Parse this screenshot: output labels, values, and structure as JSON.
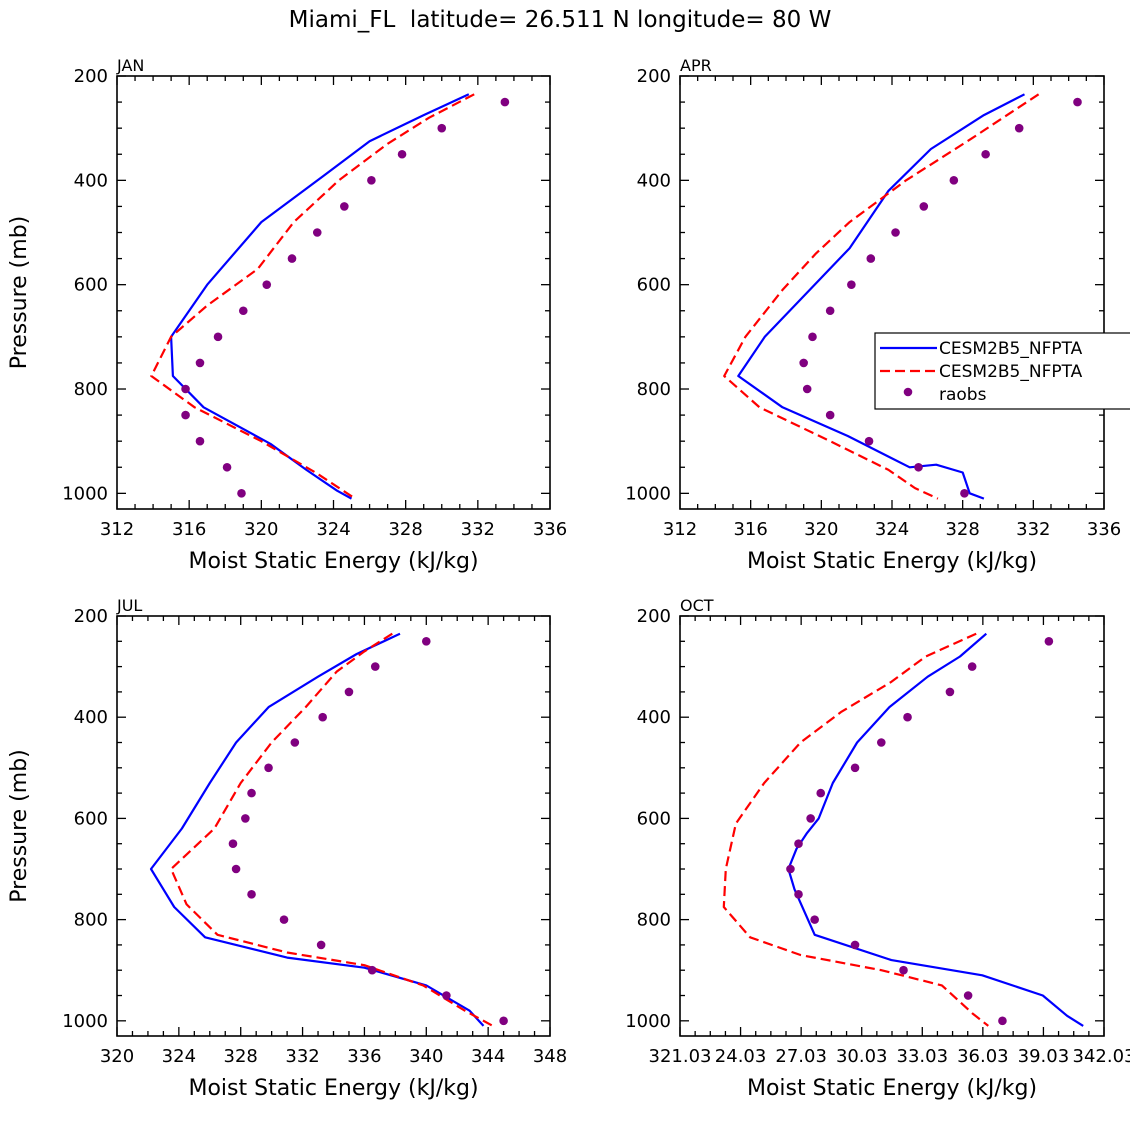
{
  "figure_title": "Miami_FL  latitude= 26.511 N longitude= 80 W",
  "legend": {
    "entries": [
      "CESM2B5_NFPTA",
      "CESM2B5_NFPTA",
      "raobs"
    ],
    "colors": [
      "#0000ff",
      "#ff0000",
      "#800080"
    ]
  },
  "chart_data": [
    {
      "type": "line",
      "title": "JAN",
      "xlabel": "Moist Static Energy (kJ/kg)",
      "ylabel": "Pressure (mb)",
      "xlim": [
        312,
        336
      ],
      "ylim": [
        200,
        1030
      ],
      "xticks": [
        312,
        316,
        320,
        324,
        328,
        332,
        336
      ],
      "xtick_labels": [
        "312",
        "316",
        "320",
        "324",
        "328",
        "332",
        "336"
      ],
      "yticks": [
        200,
        400,
        600,
        800,
        1000
      ],
      "ytick_labels": [
        "200",
        "400",
        "600",
        "800",
        "1000"
      ],
      "series": [
        {
          "name": "CESM2B5_NFPTA",
          "style": "solid",
          "color": "#0000ff",
          "x": [
            331.5,
            329.0,
            326.0,
            323.5,
            320.0,
            317.0,
            315.0,
            315.1,
            316.8,
            320.5,
            322.5,
            324.2,
            325.0
          ],
          "y": [
            235,
            275,
            325,
            390,
            480,
            600,
            700,
            775,
            835,
            905,
            955,
            995,
            1010
          ]
        },
        {
          "name": "CESM2B5_NFPTA",
          "style": "dashed",
          "color": "#ff0000",
          "x": [
            331.8,
            329.3,
            327.0,
            324.3,
            321.8,
            319.8,
            317.0,
            315.0,
            313.9,
            316.3,
            320.0,
            323.0,
            325.2
          ],
          "y": [
            235,
            280,
            330,
            400,
            480,
            570,
            640,
            700,
            775,
            835,
            900,
            960,
            1010
          ]
        }
      ],
      "points": {
        "name": "raobs",
        "color": "#800080",
        "x": [
          333.5,
          330.0,
          327.8,
          326.1,
          324.6,
          323.1,
          321.7,
          320.3,
          319.0,
          317.6,
          316.6,
          315.8,
          315.8,
          316.6,
          318.1,
          318.9
        ],
        "y": [
          250,
          300,
          350,
          400,
          450,
          500,
          550,
          600,
          650,
          700,
          750,
          800,
          850,
          900,
          950,
          1000
        ]
      }
    },
    {
      "type": "line",
      "title": "APR",
      "xlabel": "Moist Static Energy (kJ/kg)",
      "ylabel": "",
      "xlim": [
        312,
        336
      ],
      "ylim": [
        200,
        1030
      ],
      "xticks": [
        312,
        316,
        320,
        324,
        328,
        332,
        336
      ],
      "xtick_labels": [
        "312",
        "316",
        "320",
        "324",
        "328",
        "332",
        "336"
      ],
      "yticks": [
        200,
        400,
        600,
        800,
        1000
      ],
      "ytick_labels": [
        "200",
        "400",
        "600",
        "800",
        "1000"
      ],
      "legend_location": "right",
      "series": [
        {
          "name": "CESM2B5_NFPTA",
          "style": "solid",
          "color": "#0000ff",
          "x": [
            331.5,
            329.2,
            326.2,
            323.8,
            321.6,
            319.2,
            316.8,
            315.3,
            317.8,
            321.5,
            325.0,
            326.5,
            328.0,
            328.4,
            329.2
          ],
          "y": [
            235,
            275,
            340,
            420,
            530,
            615,
            700,
            775,
            835,
            890,
            950,
            945,
            960,
            1000,
            1010
          ]
        },
        {
          "name": "CESM2B5_NFPTA",
          "style": "dashed",
          "color": "#ff0000",
          "x": [
            332.3,
            328.5,
            324.8,
            321.6,
            319.7,
            317.8,
            315.7,
            314.5,
            316.5,
            320.5,
            323.8,
            325.3,
            326.6
          ],
          "y": [
            235,
            320,
            400,
            480,
            540,
            610,
            700,
            775,
            835,
            900,
            955,
            990,
            1010
          ]
        }
      ],
      "points": {
        "name": "raobs",
        "color": "#800080",
        "x": [
          334.5,
          331.2,
          329.3,
          327.5,
          325.8,
          324.2,
          322.8,
          321.7,
          320.5,
          319.5,
          319.0,
          319.2,
          320.5,
          322.7,
          325.5,
          328.1
        ],
        "y": [
          250,
          300,
          350,
          400,
          450,
          500,
          550,
          600,
          650,
          700,
          750,
          800,
          850,
          900,
          950,
          1000
        ]
      }
    },
    {
      "type": "line",
      "title": "JUL",
      "xlabel": "Moist Static Energy (kJ/kg)",
      "ylabel": "Pressure (mb)",
      "xlim": [
        320,
        348
      ],
      "ylim": [
        200,
        1030
      ],
      "xticks": [
        320,
        324,
        328,
        332,
        336,
        340,
        344,
        348
      ],
      "xtick_labels": [
        "320",
        "324",
        "328",
        "332",
        "336",
        "340",
        "344",
        "348"
      ],
      "yticks": [
        200,
        400,
        600,
        800,
        1000
      ],
      "ytick_labels": [
        "200",
        "400",
        "600",
        "800",
        "1000"
      ],
      "series": [
        {
          "name": "CESM2B5_NFPTA",
          "style": "solid",
          "color": "#0000ff",
          "x": [
            338.3,
            335.5,
            333.0,
            329.8,
            327.7,
            326.0,
            324.2,
            322.2,
            323.7,
            325.7,
            331.0,
            336.0,
            340.0,
            342.8,
            343.7
          ],
          "y": [
            235,
            275,
            320,
            380,
            450,
            530,
            620,
            700,
            775,
            835,
            875,
            895,
            930,
            980,
            1010
          ]
        },
        {
          "name": "CESM2B5_NFPTA",
          "style": "dashed",
          "color": "#ff0000",
          "x": [
            337.8,
            336.0,
            334.2,
            332.2,
            330.0,
            328.0,
            326.3,
            323.5,
            324.5,
            326.5,
            331.0,
            336.0,
            339.8,
            342.5,
            344.3
          ],
          "y": [
            235,
            270,
            310,
            380,
            450,
            530,
            620,
            700,
            770,
            830,
            865,
            890,
            930,
            980,
            1010
          ]
        }
      ],
      "points": {
        "name": "raobs",
        "color": "#800080",
        "x": [
          340.0,
          336.7,
          335.0,
          333.3,
          331.5,
          329.8,
          328.7,
          328.3,
          327.5,
          327.7,
          328.7,
          330.8,
          333.2,
          336.5,
          341.3,
          345.0
        ],
        "y": [
          250,
          300,
          350,
          400,
          450,
          500,
          550,
          600,
          650,
          700,
          750,
          800,
          850,
          900,
          950,
          1000
        ]
      }
    },
    {
      "type": "line",
      "title": "OCT",
      "xlabel": "Moist Static Energy (kJ/kg)",
      "ylabel": "",
      "xlim": [
        321.03,
        342.03
      ],
      "ylim": [
        200,
        1030
      ],
      "xticks": [
        321.03,
        324.03,
        327.03,
        330.03,
        333.03,
        336.03,
        339.03,
        342.03
      ],
      "xtick_labels": [
        "321.03",
        "24.03",
        "27.03",
        "30.03",
        "33.03",
        "36.03",
        "39.03",
        "342.03"
      ],
      "yticks": [
        200,
        400,
        600,
        800,
        1000
      ],
      "ytick_labels": [
        "200",
        "400",
        "600",
        "800",
        "1000"
      ],
      "series": [
        {
          "name": "CESM2B5_NFPTA",
          "style": "solid",
          "color": "#0000ff",
          "x": [
            336.2,
            334.9,
            333.3,
            331.4,
            329.8,
            328.6,
            327.9,
            327.3,
            326.8,
            326.4,
            326.7,
            327.7,
            331.5,
            336.0,
            339.0,
            340.2,
            341.0
          ],
          "y": [
            235,
            280,
            320,
            380,
            450,
            530,
            600,
            630,
            660,
            700,
            740,
            830,
            880,
            910,
            950,
            990,
            1010
          ]
        },
        {
          "name": "CESM2B5_NFPTA",
          "style": "dashed",
          "color": "#ff0000",
          "x": [
            335.7,
            333.2,
            331.5,
            329.0,
            327.0,
            325.2,
            323.8,
            323.3,
            323.2,
            324.5,
            327.0,
            331.0,
            334.0,
            335.5,
            336.3
          ],
          "y": [
            235,
            280,
            330,
            390,
            450,
            530,
            610,
            700,
            775,
            835,
            870,
            900,
            930,
            985,
            1010
          ]
        }
      ],
      "points": {
        "name": "raobs",
        "color": "#800080",
        "x": [
          339.3,
          335.5,
          334.4,
          332.3,
          331.0,
          329.7,
          328.0,
          327.5,
          326.9,
          326.5,
          326.9,
          327.7,
          329.7,
          332.1,
          335.3,
          337.0
        ],
        "y": [
          250,
          300,
          350,
          400,
          450,
          500,
          550,
          600,
          650,
          700,
          750,
          800,
          850,
          900,
          950,
          1000
        ]
      }
    }
  ]
}
